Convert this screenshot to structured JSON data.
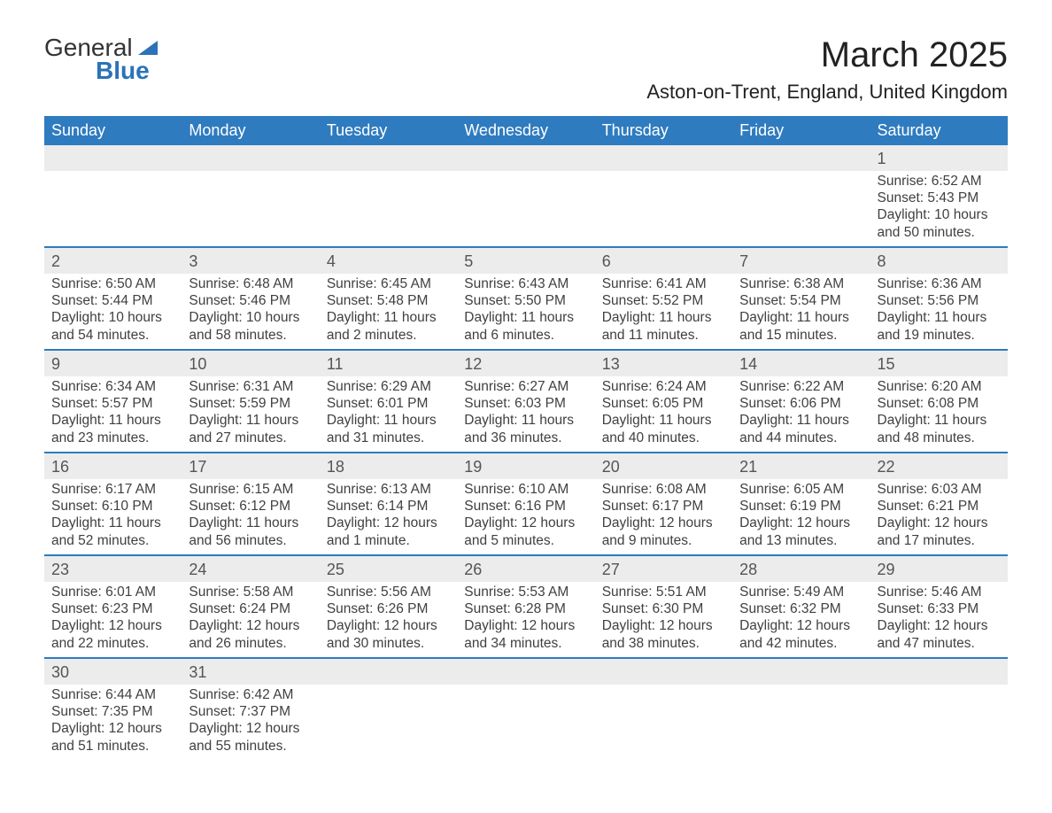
{
  "brand": {
    "name1": "General",
    "name2": "Blue"
  },
  "title": "March 2025",
  "location": "Aston-on-Trent, England, United Kingdom",
  "weekdays": [
    "Sunday",
    "Monday",
    "Tuesday",
    "Wednesday",
    "Thursday",
    "Friday",
    "Saturday"
  ],
  "colors": {
    "header_bg": "#2f7bbf",
    "header_text": "#ffffff",
    "daynum_bg": "#ececec",
    "row_border": "#2f7bbf",
    "text": "#404040"
  },
  "weeks": [
    [
      null,
      null,
      null,
      null,
      null,
      null,
      {
        "n": "1",
        "sr": "Sunrise: 6:52 AM",
        "ss": "Sunset: 5:43 PM",
        "d1": "Daylight: 10 hours",
        "d2": "and 50 minutes."
      }
    ],
    [
      {
        "n": "2",
        "sr": "Sunrise: 6:50 AM",
        "ss": "Sunset: 5:44 PM",
        "d1": "Daylight: 10 hours",
        "d2": "and 54 minutes."
      },
      {
        "n": "3",
        "sr": "Sunrise: 6:48 AM",
        "ss": "Sunset: 5:46 PM",
        "d1": "Daylight: 10 hours",
        "d2": "and 58 minutes."
      },
      {
        "n": "4",
        "sr": "Sunrise: 6:45 AM",
        "ss": "Sunset: 5:48 PM",
        "d1": "Daylight: 11 hours",
        "d2": "and 2 minutes."
      },
      {
        "n": "5",
        "sr": "Sunrise: 6:43 AM",
        "ss": "Sunset: 5:50 PM",
        "d1": "Daylight: 11 hours",
        "d2": "and 6 minutes."
      },
      {
        "n": "6",
        "sr": "Sunrise: 6:41 AM",
        "ss": "Sunset: 5:52 PM",
        "d1": "Daylight: 11 hours",
        "d2": "and 11 minutes."
      },
      {
        "n": "7",
        "sr": "Sunrise: 6:38 AM",
        "ss": "Sunset: 5:54 PM",
        "d1": "Daylight: 11 hours",
        "d2": "and 15 minutes."
      },
      {
        "n": "8",
        "sr": "Sunrise: 6:36 AM",
        "ss": "Sunset: 5:56 PM",
        "d1": "Daylight: 11 hours",
        "d2": "and 19 minutes."
      }
    ],
    [
      {
        "n": "9",
        "sr": "Sunrise: 6:34 AM",
        "ss": "Sunset: 5:57 PM",
        "d1": "Daylight: 11 hours",
        "d2": "and 23 minutes."
      },
      {
        "n": "10",
        "sr": "Sunrise: 6:31 AM",
        "ss": "Sunset: 5:59 PM",
        "d1": "Daylight: 11 hours",
        "d2": "and 27 minutes."
      },
      {
        "n": "11",
        "sr": "Sunrise: 6:29 AM",
        "ss": "Sunset: 6:01 PM",
        "d1": "Daylight: 11 hours",
        "d2": "and 31 minutes."
      },
      {
        "n": "12",
        "sr": "Sunrise: 6:27 AM",
        "ss": "Sunset: 6:03 PM",
        "d1": "Daylight: 11 hours",
        "d2": "and 36 minutes."
      },
      {
        "n": "13",
        "sr": "Sunrise: 6:24 AM",
        "ss": "Sunset: 6:05 PM",
        "d1": "Daylight: 11 hours",
        "d2": "and 40 minutes."
      },
      {
        "n": "14",
        "sr": "Sunrise: 6:22 AM",
        "ss": "Sunset: 6:06 PM",
        "d1": "Daylight: 11 hours",
        "d2": "and 44 minutes."
      },
      {
        "n": "15",
        "sr": "Sunrise: 6:20 AM",
        "ss": "Sunset: 6:08 PM",
        "d1": "Daylight: 11 hours",
        "d2": "and 48 minutes."
      }
    ],
    [
      {
        "n": "16",
        "sr": "Sunrise: 6:17 AM",
        "ss": "Sunset: 6:10 PM",
        "d1": "Daylight: 11 hours",
        "d2": "and 52 minutes."
      },
      {
        "n": "17",
        "sr": "Sunrise: 6:15 AM",
        "ss": "Sunset: 6:12 PM",
        "d1": "Daylight: 11 hours",
        "d2": "and 56 minutes."
      },
      {
        "n": "18",
        "sr": "Sunrise: 6:13 AM",
        "ss": "Sunset: 6:14 PM",
        "d1": "Daylight: 12 hours",
        "d2": "and 1 minute."
      },
      {
        "n": "19",
        "sr": "Sunrise: 6:10 AM",
        "ss": "Sunset: 6:16 PM",
        "d1": "Daylight: 12 hours",
        "d2": "and 5 minutes."
      },
      {
        "n": "20",
        "sr": "Sunrise: 6:08 AM",
        "ss": "Sunset: 6:17 PM",
        "d1": "Daylight: 12 hours",
        "d2": "and 9 minutes."
      },
      {
        "n": "21",
        "sr": "Sunrise: 6:05 AM",
        "ss": "Sunset: 6:19 PM",
        "d1": "Daylight: 12 hours",
        "d2": "and 13 minutes."
      },
      {
        "n": "22",
        "sr": "Sunrise: 6:03 AM",
        "ss": "Sunset: 6:21 PM",
        "d1": "Daylight: 12 hours",
        "d2": "and 17 minutes."
      }
    ],
    [
      {
        "n": "23",
        "sr": "Sunrise: 6:01 AM",
        "ss": "Sunset: 6:23 PM",
        "d1": "Daylight: 12 hours",
        "d2": "and 22 minutes."
      },
      {
        "n": "24",
        "sr": "Sunrise: 5:58 AM",
        "ss": "Sunset: 6:24 PM",
        "d1": "Daylight: 12 hours",
        "d2": "and 26 minutes."
      },
      {
        "n": "25",
        "sr": "Sunrise: 5:56 AM",
        "ss": "Sunset: 6:26 PM",
        "d1": "Daylight: 12 hours",
        "d2": "and 30 minutes."
      },
      {
        "n": "26",
        "sr": "Sunrise: 5:53 AM",
        "ss": "Sunset: 6:28 PM",
        "d1": "Daylight: 12 hours",
        "d2": "and 34 minutes."
      },
      {
        "n": "27",
        "sr": "Sunrise: 5:51 AM",
        "ss": "Sunset: 6:30 PM",
        "d1": "Daylight: 12 hours",
        "d2": "and 38 minutes."
      },
      {
        "n": "28",
        "sr": "Sunrise: 5:49 AM",
        "ss": "Sunset: 6:32 PM",
        "d1": "Daylight: 12 hours",
        "d2": "and 42 minutes."
      },
      {
        "n": "29",
        "sr": "Sunrise: 5:46 AM",
        "ss": "Sunset: 6:33 PM",
        "d1": "Daylight: 12 hours",
        "d2": "and 47 minutes."
      }
    ],
    [
      {
        "n": "30",
        "sr": "Sunrise: 6:44 AM",
        "ss": "Sunset: 7:35 PM",
        "d1": "Daylight: 12 hours",
        "d2": "and 51 minutes."
      },
      {
        "n": "31",
        "sr": "Sunrise: 6:42 AM",
        "ss": "Sunset: 7:37 PM",
        "d1": "Daylight: 12 hours",
        "d2": "and 55 minutes."
      },
      null,
      null,
      null,
      null,
      null
    ]
  ]
}
